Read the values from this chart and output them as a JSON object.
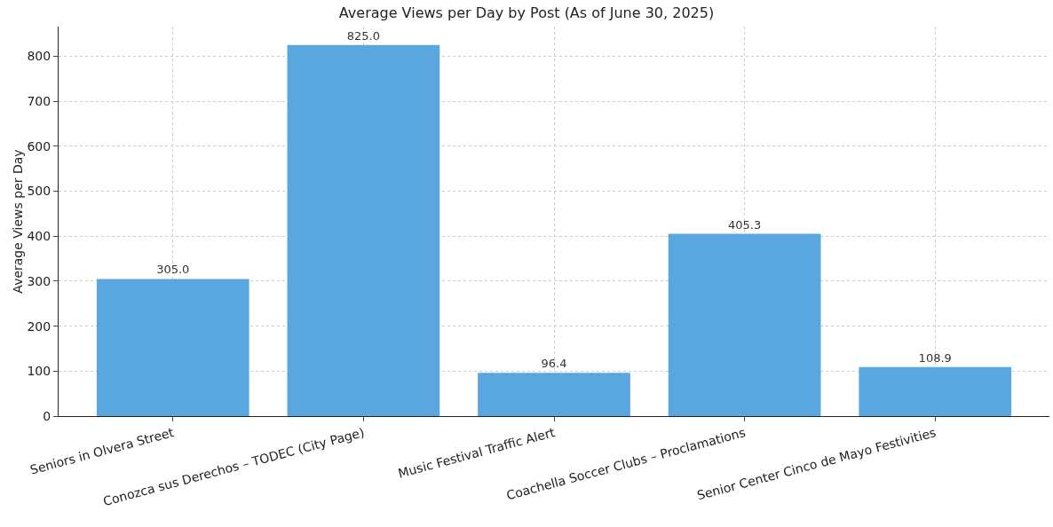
{
  "chart_data": {
    "type": "bar",
    "title": "Average Views per Day by Post (As of June 30, 2025)",
    "ylabel": "Average Views per Day",
    "categories": [
      "Seniors in Olvera Street",
      "Conozca sus Derechos – TODEC (City Page)",
      "Music Festival Traffic Alert",
      "Coachella Soccer Clubs – Proclamations",
      "Senior Center Cinco de Mayo Festivities"
    ],
    "values": [
      305.0,
      825.0,
      96.4,
      405.3,
      108.9
    ],
    "value_labels": [
      "305.0",
      "825.0",
      "96.4",
      "405.3",
      "108.9"
    ],
    "color": "#5aa7e0",
    "ylim": [
      0,
      866
    ],
    "yticks": [
      0,
      100,
      200,
      300,
      400,
      500,
      600,
      700,
      800
    ],
    "grid": true
  }
}
